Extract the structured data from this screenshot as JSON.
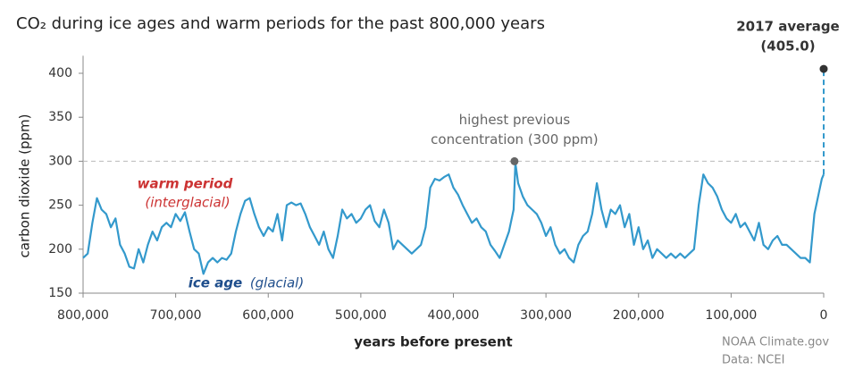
{
  "chart_data": {
    "type": "line",
    "title": "CO₂ during ice ages and warm periods for the past 800,000 years",
    "x_label": "years before present",
    "y_label": "carbon dioxide (ppm)",
    "xlim": [
      800000,
      0
    ],
    "ylim": [
      150,
      420
    ],
    "xticks": [
      {
        "value": 800000,
        "label": "800,000"
      },
      {
        "value": 700000,
        "label": "700,000"
      },
      {
        "value": 600000,
        "label": "600,000"
      },
      {
        "value": 500000,
        "label": "500,000"
      },
      {
        "value": 400000,
        "label": "400,000"
      },
      {
        "value": 300000,
        "label": "300,000"
      },
      {
        "value": 200000,
        "label": "200,000"
      },
      {
        "value": 100000,
        "label": "100,000"
      },
      0
    ],
    "yticks": [
      150,
      200,
      250,
      300,
      350,
      400
    ],
    "x": [
      800000,
      795000,
      790000,
      785000,
      780000,
      775000,
      770000,
      765000,
      760000,
      755000,
      750000,
      745000,
      740000,
      735000,
      730000,
      725000,
      720000,
      715000,
      710000,
      705000,
      700000,
      695000,
      690000,
      685000,
      680000,
      675000,
      670000,
      665000,
      660000,
      655000,
      650000,
      645000,
      640000,
      635000,
      630000,
      625000,
      620000,
      615000,
      610000,
      605000,
      600000,
      595000,
      590000,
      585000,
      580000,
      575000,
      570000,
      565000,
      560000,
      555000,
      550000,
      545000,
      540000,
      535000,
      530000,
      525000,
      520000,
      515000,
      510000,
      505000,
      500000,
      495000,
      490000,
      485000,
      480000,
      475000,
      470000,
      465000,
      460000,
      455000,
      450000,
      445000,
      440000,
      435000,
      430000,
      425000,
      420000,
      415000,
      410000,
      405000,
      400000,
      395000,
      390000,
      385000,
      380000,
      375000,
      370000,
      365000,
      360000,
      355000,
      350000,
      345000,
      340000,
      335000,
      333000,
      330000,
      325000,
      320000,
      315000,
      310000,
      305000,
      300000,
      295000,
      290000,
      285000,
      280000,
      275000,
      270000,
      265000,
      260000,
      255000,
      250000,
      245000,
      240000,
      235000,
      230000,
      225000,
      220000,
      215000,
      210000,
      205000,
      200000,
      195000,
      190000,
      185000,
      180000,
      175000,
      170000,
      165000,
      160000,
      155000,
      150000,
      145000,
      140000,
      135000,
      130000,
      125000,
      120000,
      115000,
      110000,
      105000,
      100000,
      95000,
      90000,
      85000,
      80000,
      75000,
      70000,
      65000,
      60000,
      55000,
      50000,
      45000,
      40000,
      35000,
      30000,
      25000,
      20000,
      15000,
      10000,
      5000,
      2000,
      0
    ],
    "series": [
      {
        "color": "#3399cc",
        "values": [
          190,
          195,
          230,
          258,
          245,
          240,
          225,
          235,
          205,
          195,
          180,
          178,
          200,
          185,
          205,
          220,
          210,
          225,
          230,
          225,
          240,
          232,
          242,
          220,
          200,
          195,
          172,
          185,
          190,
          185,
          190,
          188,
          195,
          220,
          240,
          255,
          258,
          240,
          225,
          215,
          225,
          220,
          240,
          210,
          250,
          253,
          250,
          252,
          240,
          225,
          215,
          205,
          220,
          200,
          190,
          215,
          245,
          235,
          240,
          230,
          235,
          245,
          250,
          232,
          225,
          245,
          230,
          200,
          210,
          205,
          200,
          195,
          200,
          205,
          225,
          270,
          280,
          278,
          282,
          285,
          270,
          262,
          250,
          240,
          230,
          235,
          225,
          220,
          205,
          198,
          190,
          205,
          220,
          245,
          298,
          275,
          260,
          250,
          245,
          240,
          230,
          215,
          225,
          205,
          195,
          200,
          190,
          185,
          205,
          215,
          220,
          240,
          275,
          245,
          225,
          245,
          240,
          250,
          225,
          240,
          205,
          225,
          200,
          210,
          190,
          200,
          195,
          190,
          195,
          190,
          195,
          190,
          195,
          200,
          250,
          285,
          275,
          270,
          260,
          245,
          235,
          230,
          240,
          225,
          230,
          220,
          210,
          230,
          205,
          200,
          210,
          215,
          205,
          205,
          200,
          195,
          190,
          190,
          185,
          240,
          265,
          280,
          285
        ]
      }
    ],
    "annotations": [
      {
        "lines": [
          "highest previous",
          "concentration (300 ppm)"
        ],
        "x": 334000,
        "y": 300,
        "color": "#666666"
      },
      {
        "lines": [
          "2017 average",
          "(405.0)"
        ],
        "x": 0,
        "y": 405,
        "y_label": "405.0",
        "color": "#333333"
      }
    ],
    "period_labels": [
      {
        "lines": [
          "warm period",
          "(interglacial)"
        ],
        "color": "#cc3333"
      },
      {
        "lines": [
          "ice age",
          "(glacial)"
        ],
        "color": "#1f4e8c"
      }
    ],
    "credits": [
      "NOAA Climate.gov",
      "Data: NCEI"
    ]
  }
}
